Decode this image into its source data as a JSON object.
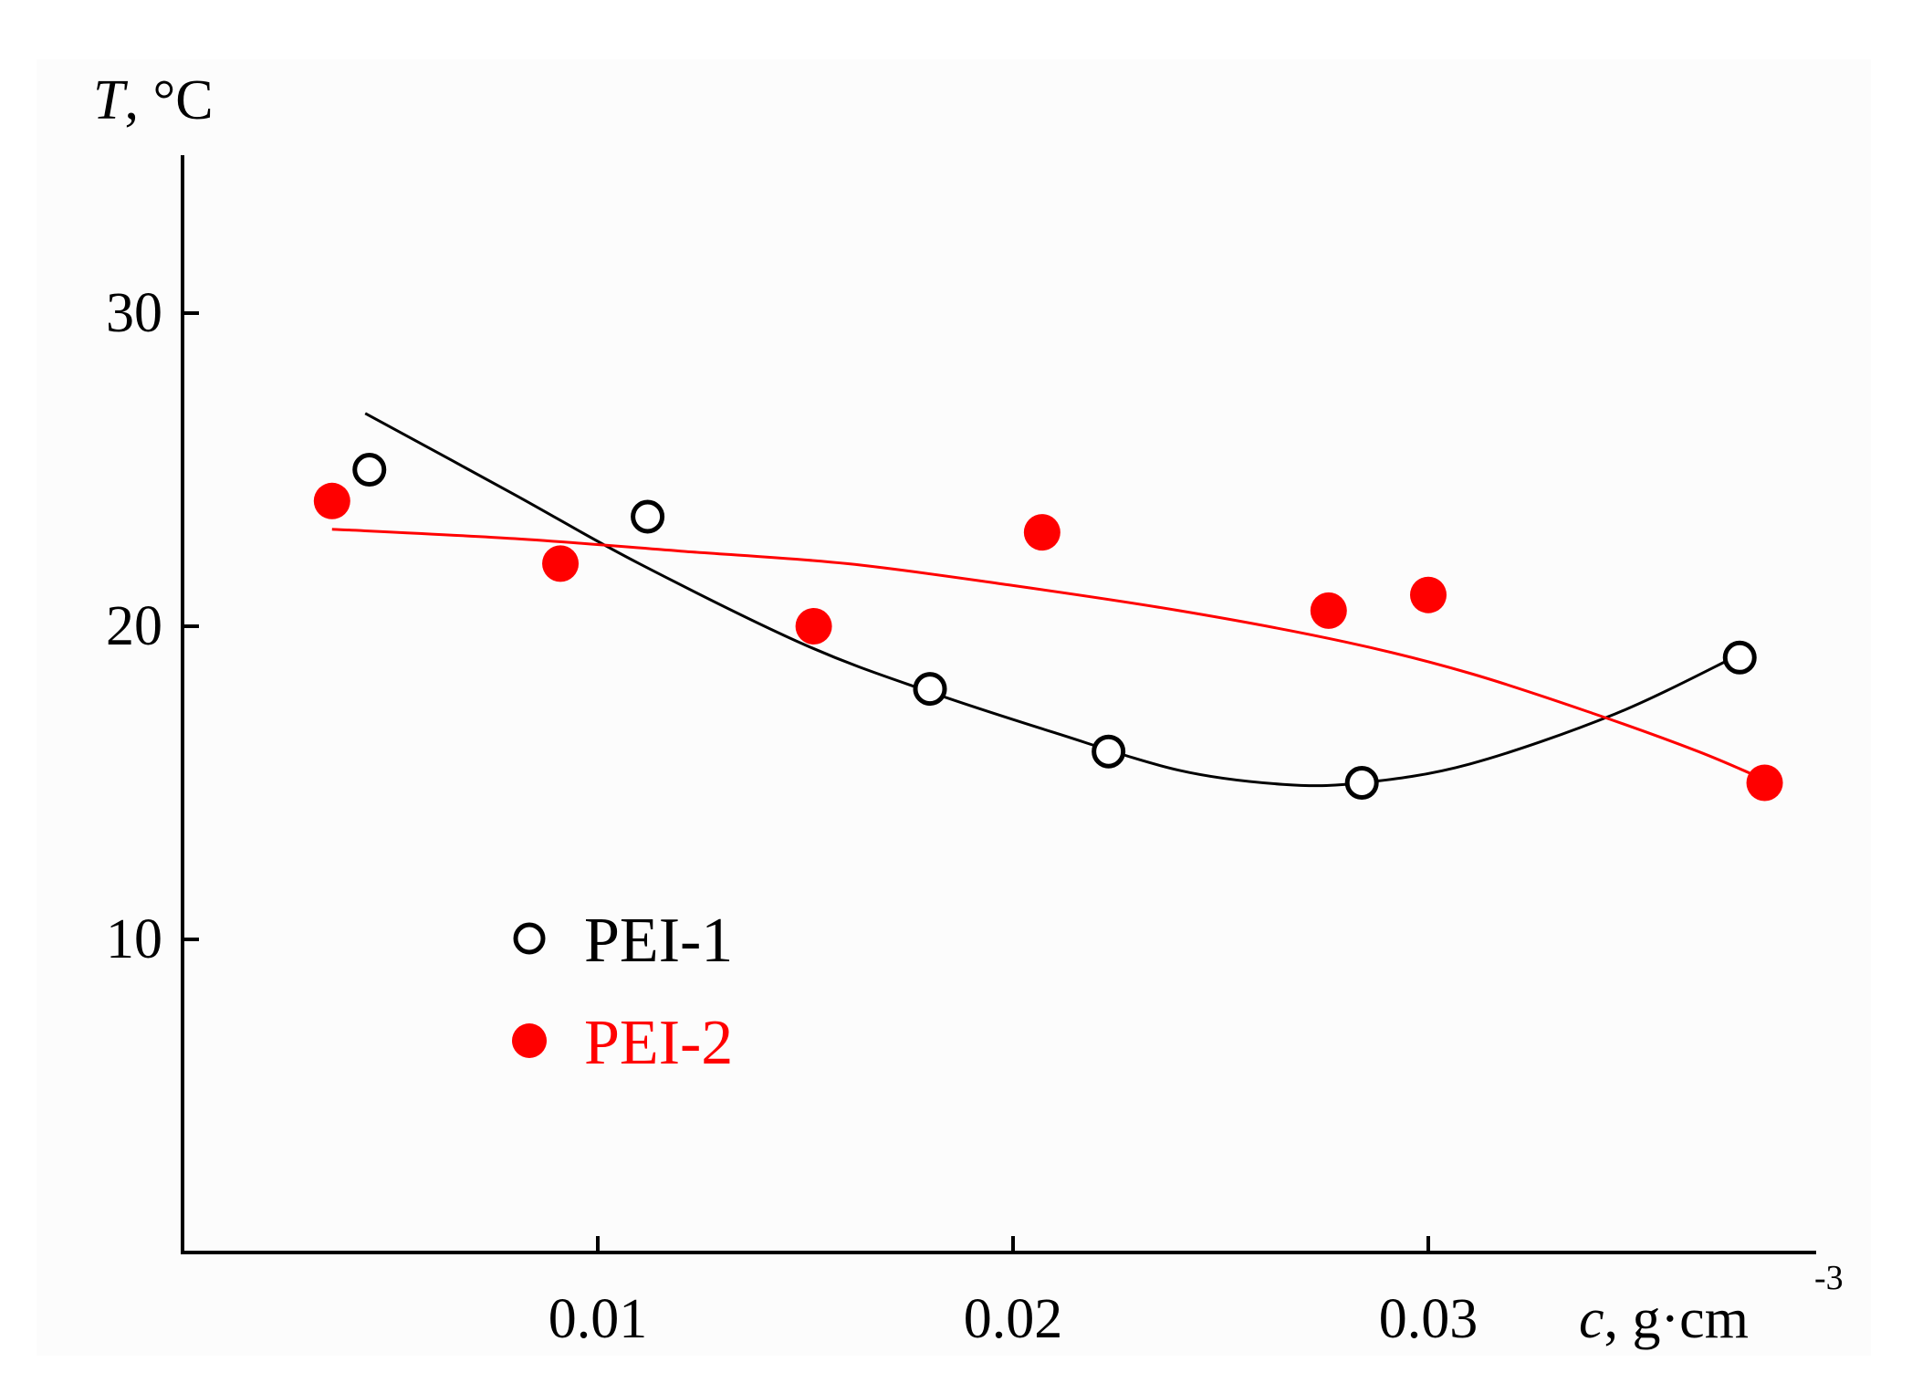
{
  "chart_data": {
    "type": "scatter",
    "title": "",
    "ylabel": {
      "var": "T",
      "unit": ", °C"
    },
    "xlabel": {
      "var": "c",
      "unit": ", g·cm",
      "sup": "-3"
    },
    "xlim": [
      0,
      0.039
    ],
    "ylim": [
      0,
      35
    ],
    "x_ticks": [
      {
        "value": 0.01,
        "label": "0.01"
      },
      {
        "value": 0.02,
        "label": "0.02"
      },
      {
        "value": 0.03,
        "label": "0.03"
      }
    ],
    "y_ticks": [
      {
        "value": 10,
        "label": "10"
      },
      {
        "value": 20,
        "label": "20"
      },
      {
        "value": 30,
        "label": "30"
      }
    ],
    "grid": false,
    "legend_position": "lower-left",
    "series": [
      {
        "name": "PEI-1",
        "marker": "open-circle",
        "color": "#000000",
        "points": [
          {
            "x": 0.0045,
            "y": 25.0
          },
          {
            "x": 0.0112,
            "y": 23.5
          },
          {
            "x": 0.018,
            "y": 18.0
          },
          {
            "x": 0.0223,
            "y": 16.0
          },
          {
            "x": 0.0284,
            "y": 15.0
          },
          {
            "x": 0.0375,
            "y": 19.0
          }
        ],
        "fit": [
          {
            "x": 0.0044,
            "y": 26.8
          },
          {
            "x": 0.008,
            "y": 24.2
          },
          {
            "x": 0.011,
            "y": 22.0
          },
          {
            "x": 0.015,
            "y": 19.4
          },
          {
            "x": 0.018,
            "y": 17.9
          },
          {
            "x": 0.021,
            "y": 16.6
          },
          {
            "x": 0.024,
            "y": 15.4
          },
          {
            "x": 0.0265,
            "y": 14.95
          },
          {
            "x": 0.0284,
            "y": 15.0
          },
          {
            "x": 0.031,
            "y": 15.6
          },
          {
            "x": 0.0345,
            "y": 17.2
          },
          {
            "x": 0.0375,
            "y": 19.1
          }
        ]
      },
      {
        "name": "PEI-2",
        "marker": "filled-circle",
        "color": "#ff0000",
        "points": [
          {
            "x": 0.0036,
            "y": 24.0
          },
          {
            "x": 0.0091,
            "y": 22.0
          },
          {
            "x": 0.0152,
            "y": 20.0
          },
          {
            "x": 0.0207,
            "y": 23.0
          },
          {
            "x": 0.0276,
            "y": 20.5
          },
          {
            "x": 0.03,
            "y": 21.0
          },
          {
            "x": 0.0381,
            "y": 15.0
          }
        ],
        "fit": [
          {
            "x": 0.0036,
            "y": 23.1
          },
          {
            "x": 0.008,
            "y": 22.8
          },
          {
            "x": 0.012,
            "y": 22.4
          },
          {
            "x": 0.016,
            "y": 22.0
          },
          {
            "x": 0.02,
            "y": 21.3
          },
          {
            "x": 0.024,
            "y": 20.5
          },
          {
            "x": 0.028,
            "y": 19.5
          },
          {
            "x": 0.031,
            "y": 18.5
          },
          {
            "x": 0.034,
            "y": 17.2
          },
          {
            "x": 0.0365,
            "y": 16.0
          },
          {
            "x": 0.0381,
            "y": 15.1
          }
        ]
      }
    ]
  }
}
